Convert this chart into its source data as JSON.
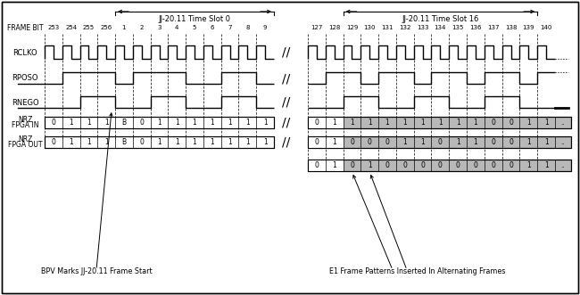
{
  "fig_width": 6.5,
  "fig_height": 3.31,
  "dpi": 100,
  "left_frame_bits": [
    "253",
    "254",
    "255",
    "256",
    "1",
    "2",
    "3",
    "4",
    "5",
    "6",
    "7",
    "8",
    "9"
  ],
  "right_frame_bits": [
    "127",
    "128",
    "129",
    "130",
    "131",
    "132",
    "133",
    "134",
    "135",
    "136",
    "137",
    "138",
    "139",
    "140"
  ],
  "left_slot_label": "JJ-20.11 Time Slot 0",
  "right_slot_label": "JJ-20.11 Time Slot 16",
  "nrz_fpga_in_left": [
    "0",
    "1",
    "1",
    "1",
    "B",
    "0",
    "1",
    "1",
    "1",
    "1",
    "1",
    "1",
    "1"
  ],
  "nrz_fpga_out_left": [
    "0",
    "1",
    "1",
    "1",
    "B",
    "0",
    "1",
    "1",
    "1",
    "1",
    "1",
    "1",
    "1"
  ],
  "nrz_fpga_in_right": [
    "0",
    "1",
    "1",
    "1",
    "1",
    "1",
    "1",
    "1",
    "1",
    "1",
    "0",
    "0",
    "1",
    "1"
  ],
  "nrz_fpga_out_right": [
    "0",
    "1",
    "0",
    "0",
    "0",
    "1",
    "1",
    "0",
    "1",
    "1",
    "0",
    "0",
    "1",
    "1"
  ],
  "nrz_fpga_out2_right": [
    "0",
    "1",
    "0",
    "1",
    "0",
    "0",
    "0",
    "0",
    "0",
    "0",
    "0",
    "0",
    "1",
    "1"
  ],
  "nrz_fpga_in_right_gray": [
    0,
    0,
    1,
    1,
    1,
    1,
    1,
    1,
    1,
    1,
    1,
    1,
    1,
    1
  ],
  "nrz_fpga_out_right_gray": [
    0,
    0,
    1,
    1,
    1,
    1,
    1,
    1,
    1,
    1,
    1,
    1,
    1,
    1
  ],
  "nrz_fpga_out2_right_gray": [
    0,
    0,
    1,
    1,
    1,
    1,
    1,
    1,
    1,
    1,
    1,
    1,
    1,
    1
  ],
  "rposo_left_p": [
    0,
    1,
    1,
    1,
    0,
    1,
    1,
    1,
    0,
    0,
    1,
    1,
    0
  ],
  "rnego_left_p": [
    0,
    0,
    1,
    1,
    0,
    0,
    1,
    1,
    0,
    0,
    1,
    1,
    0
  ],
  "rposo_right_p": [
    0,
    1,
    1,
    0,
    1,
    1,
    0,
    1,
    1,
    0,
    1,
    1,
    0,
    1
  ],
  "rnego_right_p": [
    0,
    0,
    1,
    1,
    0,
    0,
    1,
    1,
    0,
    0,
    1,
    1,
    0,
    0
  ],
  "annotation_bpv": "BPV Marks JJ-20.11 Frame Start",
  "annotation_e1": "E1 Frame Patterns Inserted In Alternating Frames",
  "gray_color": "#b8b8b8",
  "white_color": "#ffffff",
  "black_color": "#000000"
}
